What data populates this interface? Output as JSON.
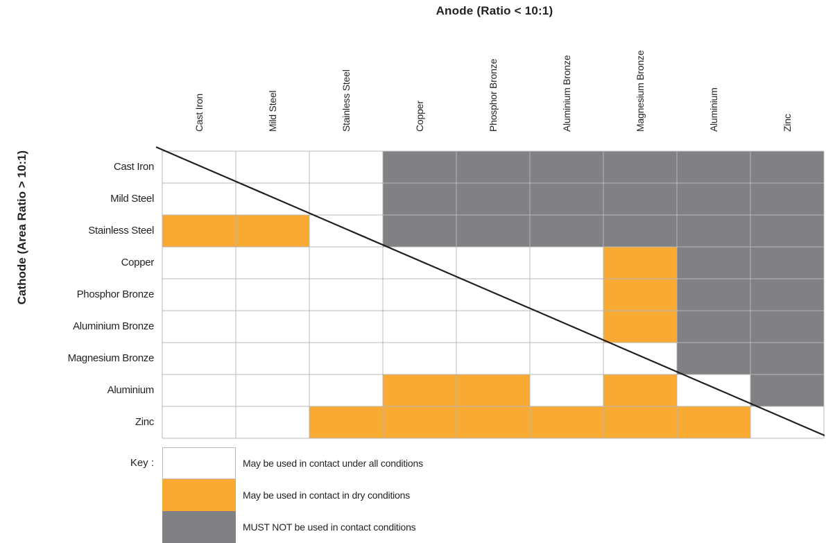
{
  "chart_data": {
    "type": "table",
    "x_title": "Anode (Ratio < 10:1)",
    "y_title": "Cathode (Area Ratio > 10:1)",
    "columns": [
      "Cast Iron",
      "Mild Steel",
      "Stainless Steel",
      "Copper",
      "Phosphor Bronze",
      "Aluminium Bronze",
      "Magnesium Bronze",
      "Aluminium",
      "Zinc"
    ],
    "rows": [
      "Cast Iron",
      "Mild Steel",
      "Stainless Steel",
      "Copper",
      "Phosphor Bronze",
      "Aluminium Bronze",
      "Magnesium Bronze",
      "Aluminium",
      "Zinc"
    ],
    "cells": [
      [
        "W",
        "W",
        "W",
        "G",
        "G",
        "G",
        "G",
        "G",
        "G"
      ],
      [
        "W",
        "W",
        "W",
        "G",
        "G",
        "G",
        "G",
        "G",
        "G"
      ],
      [
        "O",
        "O",
        "W",
        "G",
        "G",
        "G",
        "G",
        "G",
        "G"
      ],
      [
        "W",
        "W",
        "W",
        "W",
        "W",
        "W",
        "O",
        "G",
        "G"
      ],
      [
        "W",
        "W",
        "W",
        "W",
        "W",
        "W",
        "O",
        "G",
        "G"
      ],
      [
        "W",
        "W",
        "W",
        "W",
        "W",
        "W",
        "O",
        "G",
        "G"
      ],
      [
        "W",
        "W",
        "W",
        "W",
        "W",
        "W",
        "W",
        "G",
        "G"
      ],
      [
        "W",
        "W",
        "W",
        "O",
        "O",
        "W",
        "O",
        "W",
        "G"
      ],
      [
        "W",
        "W",
        "O",
        "O",
        "O",
        "O",
        "O",
        "O",
        "W"
      ]
    ],
    "key_title": "Key :",
    "legend": [
      {
        "code": "W",
        "label": "May be used in contact under all conditions",
        "color": "#ffffff"
      },
      {
        "code": "O",
        "label": "May be used in contact in dry conditions",
        "color": "#f9aa33"
      },
      {
        "code": "G",
        "label": "MUST NOT be used in contact conditions",
        "color": "#808184"
      }
    ],
    "diagonal_line": true,
    "grid_color": "#b8b8b8"
  }
}
